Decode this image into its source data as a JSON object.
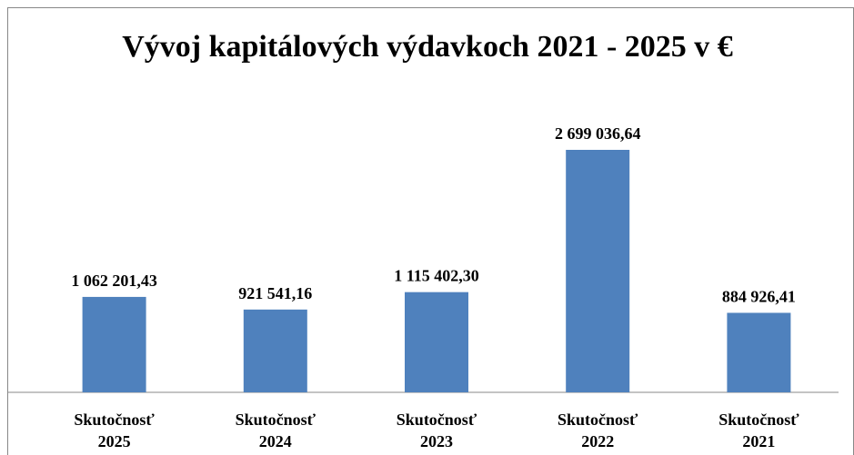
{
  "chart_data": {
    "type": "bar",
    "title": "Vývoj kapitálových výdavkoch 2021 - 2025 v €",
    "categories": [
      "Skutočnosť\n2025",
      "Skutočnosť\n2024",
      "Skutočnosť\n2023",
      "Skutočnosť\n2022",
      "Skutočnosť\n2021"
    ],
    "values": [
      1062201.43,
      921541.16,
      1115402.3,
      2699036.64,
      884926.41
    ],
    "value_labels": [
      "1 062 201,43",
      "921 541,16",
      "1 115 402,30",
      "2 699 036,64",
      "884 926,41"
    ],
    "color": "#4f81bd"
  }
}
